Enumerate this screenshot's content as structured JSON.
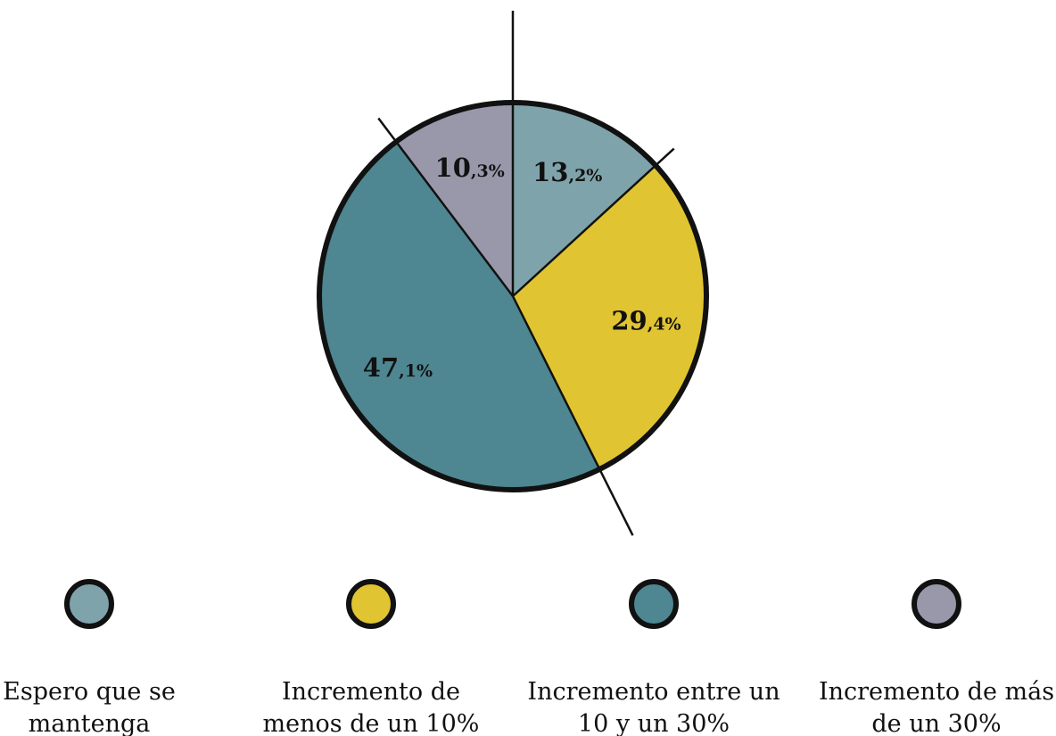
{
  "chart_data": {
    "type": "pie",
    "slices": [
      {
        "name": "Espero que se mantenga",
        "legend_lines": [
          "Espero que se",
          "mantenga"
        ],
        "value": 13.2,
        "int_label": "13",
        "dec_label": ",2%",
        "color": "#7fa3ab"
      },
      {
        "name": "Incremento de menos de un 10%",
        "legend_lines": [
          "Incremento de",
          "menos de un 10%"
        ],
        "value": 29.4,
        "int_label": "29",
        "dec_label": ",4%",
        "color": "#e0c432"
      },
      {
        "name": "Incremento entre un 10 y un 30%",
        "legend_lines": [
          "Incremento entre un",
          "10 y un 30%"
        ],
        "value": 47.1,
        "int_label": "47",
        "dec_label": ",1%",
        "color": "#4e8691"
      },
      {
        "name": "Incremento de más de un 30%",
        "legend_lines": [
          "Incremento de más",
          "de un 30%"
        ],
        "value": 10.3,
        "int_label": "10",
        "dec_label": ",3%",
        "color": "#9998ab"
      }
    ],
    "legend_position": "bottom",
    "start_angle": "top",
    "direction": "clockwise",
    "outline_color": "#111111"
  }
}
